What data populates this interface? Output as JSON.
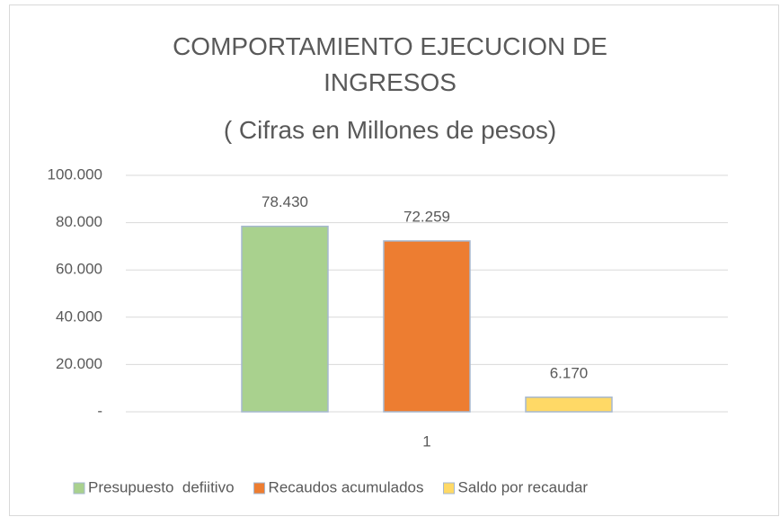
{
  "chart_data": {
    "type": "bar",
    "title": "COMPORTAMIENTO EJECUCION DE INGRESOS",
    "subtitle": "( Cifras en Millones de pesos)",
    "categories": [
      "1"
    ],
    "series": [
      {
        "name": "Presupuesto  defiitivo",
        "color": "#a9d18e",
        "values": [
          78430
        ],
        "value_labels": [
          "78.430"
        ]
      },
      {
        "name": "Recaudos acumulados",
        "color": "#ed7d31",
        "values": [
          72259
        ],
        "value_labels": [
          "72.259"
        ]
      },
      {
        "name": "Saldo por recaudar",
        "color": "#ffd966",
        "values": [
          6170
        ],
        "value_labels": [
          "6.170"
        ]
      }
    ],
    "ylim": [
      0,
      100000
    ],
    "yticks": [
      {
        "value": 0,
        "label": "-"
      },
      {
        "value": 20000,
        "label": "20.000"
      },
      {
        "value": 40000,
        "label": "40.000"
      },
      {
        "value": 60000,
        "label": "60.000"
      },
      {
        "value": 80000,
        "label": "80.000"
      },
      {
        "value": 100000,
        "label": "100.000"
      }
    ],
    "grid": true,
    "legend": "bottom"
  }
}
